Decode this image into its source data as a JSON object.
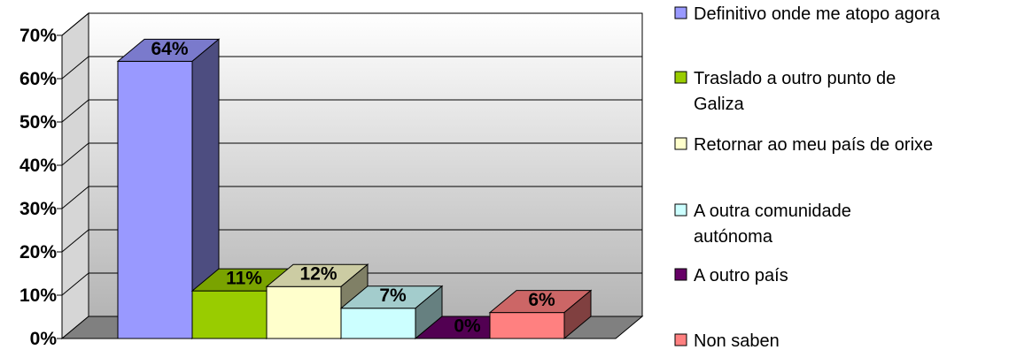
{
  "chart_data": {
    "type": "bar",
    "categories": [
      "Definitivo onde me atopo agora",
      "Traslado a outro punto de Galiza",
      "Retornar ao meu país de orixe",
      "A outra comunidade autónoma",
      "A outro país",
      "Non saben"
    ],
    "values": [
      64,
      11,
      12,
      7,
      0,
      6
    ],
    "data_labels": [
      "64%",
      "11%",
      "12%",
      "7%",
      "0%",
      "6%"
    ],
    "colors": [
      "#9999ff",
      "#99cc00",
      "#ffffcc",
      "#ccffff",
      "#660066",
      "#ff8080"
    ],
    "legend": [
      {
        "lines": [
          "Definitivo onde me atopo agora"
        ]
      },
      {
        "lines": [
          "Traslado a outro punto de",
          "Galiza"
        ]
      },
      {
        "lines": [
          "Retornar ao meu país de orixe"
        ]
      },
      {
        "lines": [
          "A outra comunidade",
          "autónoma"
        ]
      },
      {
        "lines": [
          "A outro país"
        ]
      },
      {
        "lines": [
          "Non saben"
        ]
      }
    ],
    "ylim": [
      0,
      70
    ],
    "yticks": [
      "0%",
      "10%",
      "20%",
      "30%",
      "40%",
      "50%",
      "60%",
      "70%"
    ],
    "grid": true,
    "legend_position": "right",
    "title": "",
    "xlabel": "",
    "ylabel": ""
  }
}
